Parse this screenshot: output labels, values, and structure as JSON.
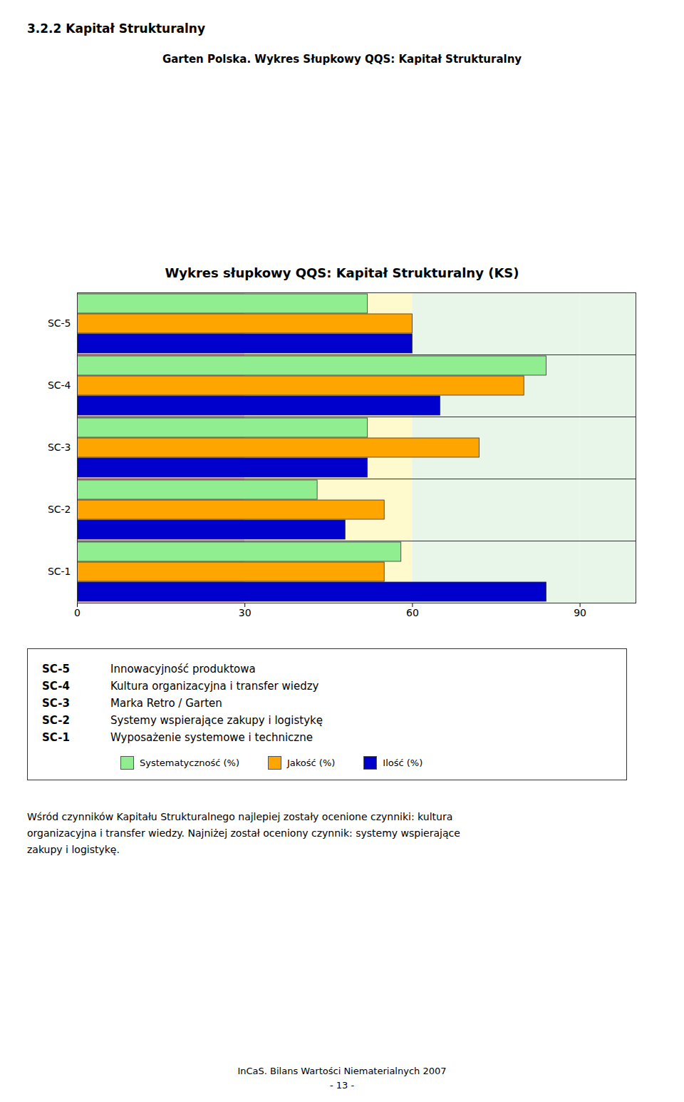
{
  "page_title": "3.2.2   Kapitał Strukturalny",
  "subtitle": "Garten Polska.  Wykres Słupkowy QQS: Kapitał Strukturalny",
  "chart_data": {
    "type": "bar",
    "orientation": "horizontal",
    "title": "Wykres słupkowy QQS: Kapitał Strukturalny  (KS)",
    "categories": [
      "SC-5",
      "SC-4",
      "SC-3",
      "SC-2",
      "SC-1"
    ],
    "series": [
      {
        "name": "Ilość (%)",
        "color": "#0000CC",
        "values": [
          60,
          65,
          52,
          48,
          84
        ]
      },
      {
        "name": "Jakość (%)",
        "color": "#FFA500",
        "values": [
          60,
          80,
          72,
          55,
          55
        ]
      },
      {
        "name": "Systematyczność (%)",
        "color": "#90EE90",
        "values": [
          52,
          84,
          52,
          43,
          58
        ]
      }
    ],
    "xlim": [
      0,
      100
    ],
    "xticks": [
      0,
      30,
      60,
      90
    ],
    "grid": false,
    "legend": "bottom",
    "bands": [
      {
        "from": 0,
        "to": 30,
        "color": "#FFCCCC"
      },
      {
        "from": 30,
        "to": 60,
        "color": "#FFFACD"
      },
      {
        "from": 60,
        "to": 90,
        "color": "#E8F5E9"
      },
      {
        "from": 90,
        "to": 100,
        "color": "#E8F5E9"
      }
    ]
  },
  "descriptions": [
    {
      "code": "SC-5",
      "text": "Innowacyjność produktowa"
    },
    {
      "code": "SC-4",
      "text": "Kultura organizacyjna i transfer wiedzy"
    },
    {
      "code": "SC-3",
      "text": "Marka Retro / Garten"
    },
    {
      "code": "SC-2",
      "text": "Systemy wspierające zakupy i logistykę"
    },
    {
      "code": "SC-1",
      "text": "Wyposażenie systemowe i techniczne"
    }
  ],
  "paragraph": [
    "Wśród czynników Kapitału Strukturalnego najlepiej zostały ocenione czynniki: kultura",
    "organizacyjna i transfer wiedzy. Najniżej został oceniony czynnik: systemy wspierające",
    "zakupy i logistykę."
  ],
  "footer": [
    "InCaS. Bilans Wartości Niematerialnych 2007",
    "- 13 -"
  ]
}
